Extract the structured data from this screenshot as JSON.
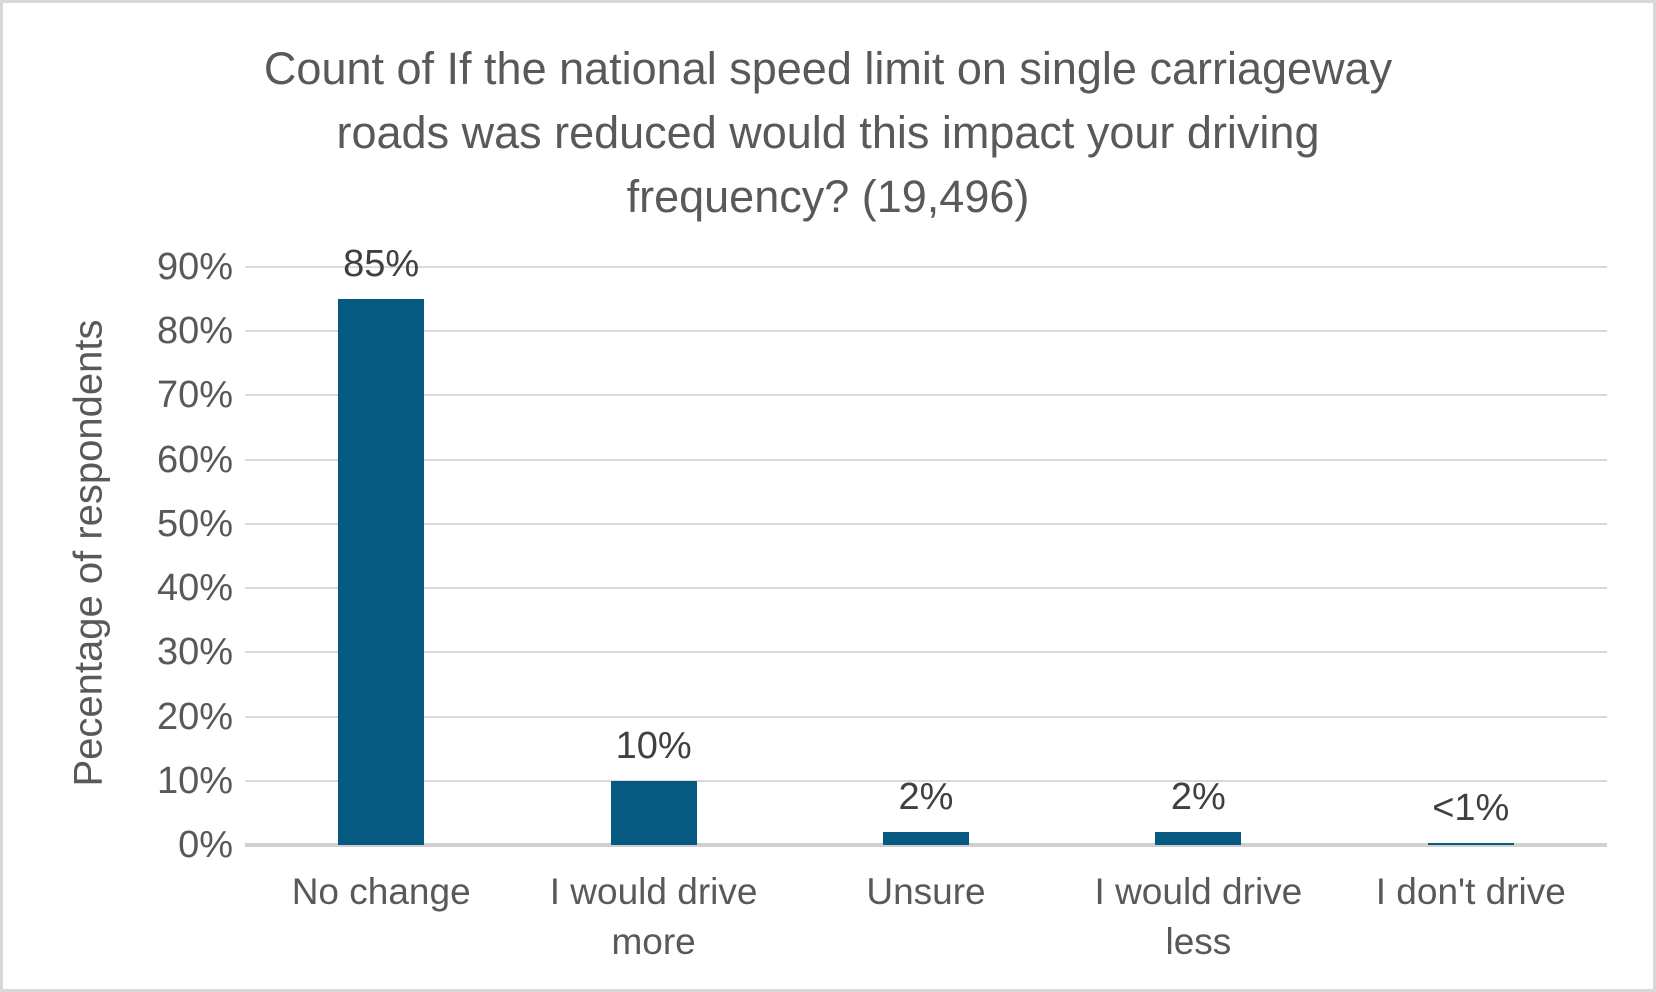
{
  "chart_data": {
    "type": "bar",
    "title": "Count of If the national speed limit on single carriageway roads was reduced would this impact your driving frequency? (19,496)",
    "title_lines": [
      "Count of If the national speed limit on single carriageway",
      "roads was reduced would this impact your driving",
      "frequency? (19,496)"
    ],
    "ylabel": "Pecentage of respondents",
    "xlabel": "",
    "categories": [
      "No change",
      "I would drive more",
      "Unsure",
      "I would drive less",
      "I don't drive"
    ],
    "values": [
      85,
      10,
      2,
      2,
      0.3
    ],
    "value_labels": [
      "85%",
      "10%",
      "2%",
      "2%",
      "<1%"
    ],
    "ylim": [
      0,
      90
    ],
    "yticks": [
      {
        "value": 0,
        "label": "0%"
      },
      {
        "value": 10,
        "label": "10%"
      },
      {
        "value": 20,
        "label": "20%"
      },
      {
        "value": 30,
        "label": "30%"
      },
      {
        "value": 40,
        "label": "40%"
      },
      {
        "value": 50,
        "label": "50%"
      },
      {
        "value": 60,
        "label": "60%"
      },
      {
        "value": 70,
        "label": "70%"
      },
      {
        "value": 80,
        "label": "80%"
      },
      {
        "value": 90,
        "label": "90%"
      }
    ],
    "grid": "horizontal",
    "legend": "none",
    "colors": {
      "bar": "#065A82",
      "title_text": "#595959",
      "axis_text": "#595959",
      "data_label_text": "#404040",
      "gridline": "#D9D9D9",
      "axis_line": "#D0D0D0",
      "background": "#FFFFFF",
      "frame_border": "#D8D8D8"
    }
  }
}
